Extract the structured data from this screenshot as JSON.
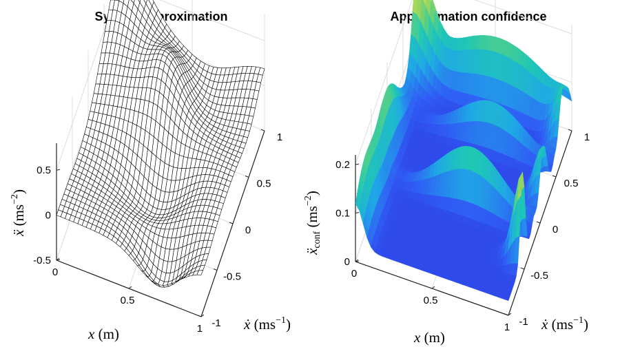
{
  "chart_data": [
    {
      "type": "mesh3d",
      "title": "System approximation",
      "xlabel": {
        "sym": "x",
        "unit": " (m)"
      },
      "ylabel": {
        "sym": "ẋ",
        "unit": " (ms",
        "exp": "−1",
        "close": ")"
      },
      "zlabel": {
        "sym": "ẍ",
        "unit": " (ms",
        "exp": "−2",
        "close": ")"
      },
      "xlim": [
        0,
        1
      ],
      "ylim": [
        -1,
        1
      ],
      "zlim": [
        -0.5,
        0.8
      ],
      "xticks": [
        "0",
        "0.5",
        "1"
      ],
      "yticks": [
        "-1",
        "-0.5",
        "0",
        "0.5",
        "1"
      ],
      "zticks": [
        "-0.5",
        "0",
        "0.5"
      ],
      "grid": true,
      "surface": "wireframe mesh, black lines on white"
    },
    {
      "type": "surface3d",
      "title": "Approximation confidence",
      "xlabel": {
        "sym": "x",
        "unit": " (m)"
      },
      "ylabel": {
        "sym": "ẋ",
        "unit": " (ms",
        "exp": "−1",
        "close": ")"
      },
      "zlabel": {
        "sym": "ẍ",
        "sub": "conf",
        "unit": " (ms",
        "exp": "−2",
        "close": ")"
      },
      "xlim": [
        0,
        1
      ],
      "ylim": [
        -1,
        1
      ],
      "zlim": [
        0,
        0.22
      ],
      "xticks": [
        "0",
        "0.5",
        "1"
      ],
      "yticks": [
        "-1",
        "-0.5",
        "0",
        "0.5",
        "1"
      ],
      "zticks": [
        "0",
        "0.1",
        "0.2"
      ],
      "grid": true,
      "colormap": [
        "#2b1fd6",
        "#2f5ef5",
        "#1fa8e6",
        "#1fc8b3",
        "#7ed36a",
        "#f3e33a"
      ]
    }
  ]
}
